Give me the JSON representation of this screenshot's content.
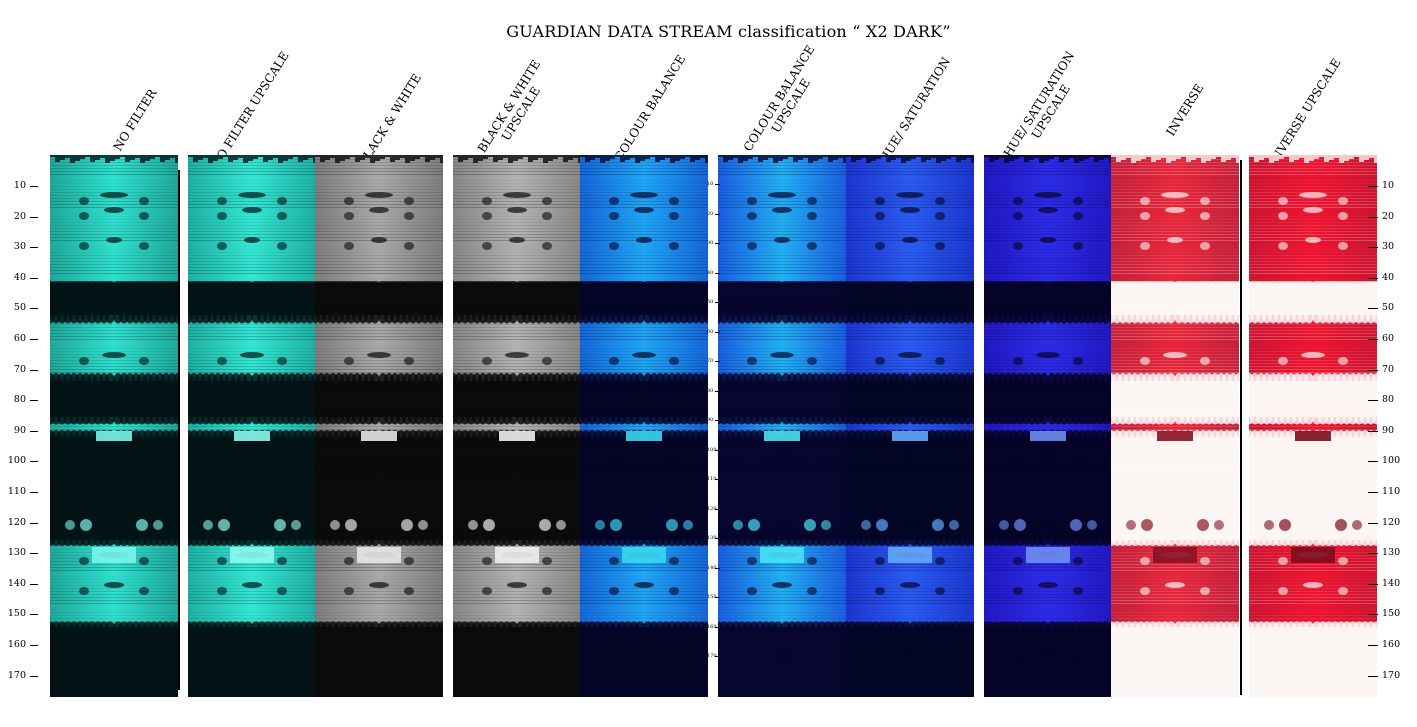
{
  "title": "GUARDIAN DATA STREAM classification “ X2 DARK”",
  "columns": [
    {
      "label": "NO FILTER",
      "theme": "teal",
      "colors": {
        "light": "#2fe0cf",
        "mid": "#1fa89a",
        "dark": "#041416",
        "accent": "#7af5ea"
      }
    },
    {
      "label": "NO FILTER UPSCALE",
      "theme": "teal",
      "colors": {
        "light": "#33e6d4",
        "mid": "#1fb0a2",
        "dark": "#041416",
        "accent": "#8cf8ee"
      }
    },
    {
      "label": "BLACK & WHITE",
      "theme": "gray",
      "colors": {
        "light": "#a9a9a9",
        "mid": "#7d7d7d",
        "dark": "#0b0b0b",
        "accent": "#e6e6e6"
      }
    },
    {
      "label": "BLACK & WHITE UPSCALE",
      "theme": "gray",
      "colors": {
        "light": "#b3b3b3",
        "mid": "#878787",
        "dark": "#0b0b0b",
        "accent": "#eeeeee"
      }
    },
    {
      "label": "COLOUR BALANCE",
      "theme": "cyanblue",
      "colors": {
        "light": "#1fa6f5",
        "mid": "#1566d8",
        "dark": "#050528",
        "accent": "#3ad7f0"
      }
    },
    {
      "label": "COLOUR BALANCE UPSCALE",
      "theme": "cyanblue",
      "colors": {
        "light": "#22b0f2",
        "mid": "#1a5ee0",
        "dark": "#07062e",
        "accent": "#48e2f2"
      }
    },
    {
      "label": "HUE/ SATURATION",
      "theme": "blue",
      "colors": {
        "light": "#2a5cf2",
        "mid": "#1c36d0",
        "dark": "#040626",
        "accent": "#63a8f7"
      }
    },
    {
      "label": "HUE/ SATURATION UPSCALE",
      "theme": "violet",
      "colors": {
        "light": "#2c2ce8",
        "mid": "#2218c4",
        "dark": "#060428",
        "accent": "#6f8ef2"
      }
    },
    {
      "label": "INVERSE",
      "theme": "red",
      "colors": {
        "light": "#e8263a",
        "mid": "#c4203a",
        "dark": "#fbf6f4",
        "accent": "#8a1224"
      }
    },
    {
      "label": "INVERSE UPSCALE",
      "theme": "red",
      "colors": {
        "light": "#ee1430",
        "mid": "#cc1430",
        "dark": "#fbf5f3",
        "accent": "#7c0c1c"
      }
    }
  ],
  "axis_ticks": [
    "10",
    "20",
    "30",
    "40",
    "50",
    "60",
    "70",
    "80",
    "90",
    "100",
    "110",
    "120",
    "130",
    "140",
    "150",
    "160",
    "170"
  ],
  "mini_axis_ticks": [
    "10",
    "20",
    "30",
    "40",
    "50",
    "60",
    "70",
    "80",
    "90",
    "100",
    "110",
    "120",
    "130",
    "140",
    "150",
    "160",
    "170"
  ]
}
